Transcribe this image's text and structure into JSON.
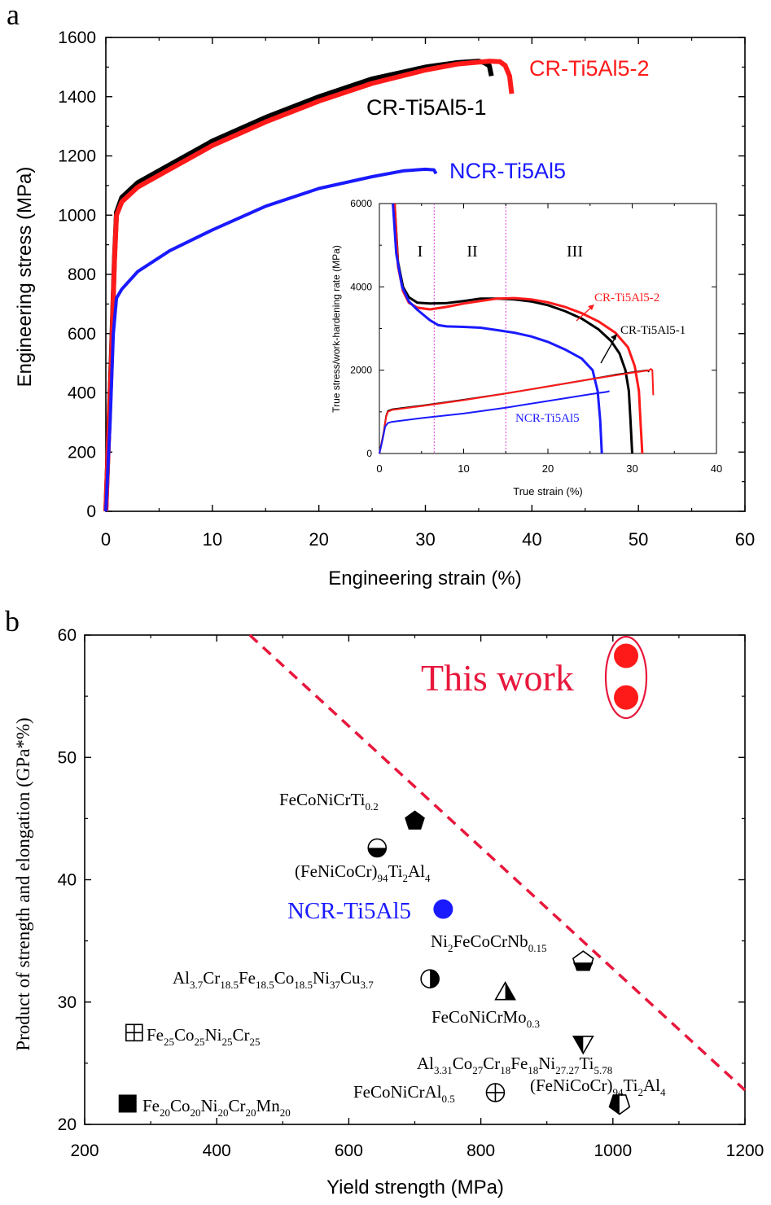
{
  "colors": {
    "black": "#000000",
    "red": "#ff1a1a",
    "blue": "#1a1aff",
    "crimson": "#e8173c",
    "magenta": "#e040e0"
  },
  "panels": {
    "a": {
      "letter": "a"
    },
    "b": {
      "letter": "b"
    }
  },
  "chart_data": [
    {
      "type": "line",
      "panel": "a",
      "xlabel": "Engineering strain (%)",
      "ylabel": "Engineering stress (MPa)",
      "xlim": [
        0,
        60
      ],
      "ylim": [
        0,
        1600
      ],
      "xticks": [
        0,
        10,
        20,
        30,
        40,
        50,
        60
      ],
      "yticks": [
        0,
        200,
        400,
        600,
        800,
        1000,
        1200,
        1400,
        1600
      ],
      "series": [
        {
          "name": "CR-Ti5Al5-1",
          "color": "#000000",
          "points": [
            [
              0,
              0
            ],
            [
              0.5,
              500
            ],
            [
              0.8,
              850
            ],
            [
              1.0,
              1010
            ],
            [
              1.5,
              1060
            ],
            [
              3,
              1110
            ],
            [
              6,
              1170
            ],
            [
              10,
              1250
            ],
            [
              15,
              1330
            ],
            [
              20,
              1400
            ],
            [
              25,
              1460
            ],
            [
              30,
              1500
            ],
            [
              33,
              1515
            ],
            [
              35,
              1520
            ],
            [
              35.5,
              1515
            ],
            [
              36,
              1505
            ],
            [
              36.2,
              1470
            ]
          ]
        },
        {
          "name": "CR-Ti5Al5-2",
          "color": "#ff1a1a",
          "points": [
            [
              0,
              0
            ],
            [
              0.5,
              480
            ],
            [
              0.8,
              840
            ],
            [
              1.0,
              1000
            ],
            [
              1.5,
              1045
            ],
            [
              3,
              1095
            ],
            [
              6,
              1155
            ],
            [
              10,
              1235
            ],
            [
              15,
              1315
            ],
            [
              20,
              1385
            ],
            [
              25,
              1445
            ],
            [
              30,
              1490
            ],
            [
              33,
              1510
            ],
            [
              36,
              1520
            ],
            [
              37,
              1518
            ],
            [
              37.5,
              1505
            ],
            [
              37.9,
              1470
            ],
            [
              38.1,
              1410
            ]
          ]
        },
        {
          "name": "NCR-Ti5Al5",
          "color": "#1a1aff",
          "points": [
            [
              0,
              0
            ],
            [
              0.4,
              300
            ],
            [
              0.7,
              600
            ],
            [
              1.0,
              720
            ],
            [
              1.5,
              750
            ],
            [
              3,
              810
            ],
            [
              6,
              880
            ],
            [
              10,
              950
            ],
            [
              15,
              1030
            ],
            [
              20,
              1090
            ],
            [
              25,
              1130
            ],
            [
              28,
              1150
            ],
            [
              30,
              1155
            ],
            [
              30.8,
              1153
            ],
            [
              31,
              1140
            ]
          ]
        }
      ]
    },
    {
      "type": "line",
      "panel": "a-inset",
      "xlabel": "True strain (%)",
      "ylabel": "True stress/work-hardening rate (MPa)",
      "xlim": [
        0,
        40
      ],
      "ylim": [
        0,
        6000
      ],
      "xticks": [
        0,
        10,
        20,
        30,
        40
      ],
      "yticks": [
        0,
        2000,
        4000,
        6000
      ],
      "regions": [
        {
          "label": "I",
          "from": 0,
          "to": 6.5
        },
        {
          "label": "II",
          "from": 6.5,
          "to": 15
        },
        {
          "label": "III",
          "from": 15,
          "to": 40
        }
      ],
      "dividers": [
        6.5,
        15
      ],
      "series": [
        {
          "name": "CR-Ti5Al5-1",
          "color": "#000000",
          "kind": "hardening",
          "points": [
            [
              1.8,
              6000
            ],
            [
              2.2,
              4600
            ],
            [
              2.8,
              4000
            ],
            [
              3.5,
              3750
            ],
            [
              4.5,
              3620
            ],
            [
              6,
              3600
            ],
            [
              8,
              3610
            ],
            [
              10,
              3660
            ],
            [
              12,
              3720
            ],
            [
              14,
              3720
            ],
            [
              16,
              3700
            ],
            [
              18,
              3650
            ],
            [
              20,
              3560
            ],
            [
              22,
              3420
            ],
            [
              24,
              3240
            ],
            [
              26,
              2980
            ],
            [
              27.5,
              2700
            ],
            [
              28.5,
              2400
            ],
            [
              29.2,
              2000
            ],
            [
              29.6,
              1500
            ],
            [
              29.8,
              800
            ],
            [
              30,
              0
            ]
          ]
        },
        {
          "name": "CR-Ti5Al5-2",
          "color": "#ff1a1a",
          "kind": "hardening",
          "points": [
            [
              1.8,
              6000
            ],
            [
              2.2,
              4500
            ],
            [
              2.8,
              3900
            ],
            [
              3.5,
              3620
            ],
            [
              4.5,
              3500
            ],
            [
              6,
              3460
            ],
            [
              8,
              3520
            ],
            [
              10,
              3600
            ],
            [
              12,
              3660
            ],
            [
              14,
              3720
            ],
            [
              16,
              3730
            ],
            [
              18,
              3700
            ],
            [
              20,
              3630
            ],
            [
              22,
              3520
            ],
            [
              24,
              3370
            ],
            [
              26,
              3170
            ],
            [
              28,
              2900
            ],
            [
              29.5,
              2550
            ],
            [
              30.3,
              2100
            ],
            [
              30.8,
              1500
            ],
            [
              31,
              700
            ],
            [
              31.2,
              0
            ]
          ]
        },
        {
          "name": "NCR-Ti5Al5",
          "color": "#1a1aff",
          "kind": "hardening",
          "points": [
            [
              1.6,
              6000
            ],
            [
              2,
              4800
            ],
            [
              2.7,
              4000
            ],
            [
              3.5,
              3650
            ],
            [
              4.5,
              3450
            ],
            [
              6,
              3200
            ],
            [
              7,
              3080
            ],
            [
              8,
              3050
            ],
            [
              10,
              3040
            ],
            [
              12,
              3020
            ],
            [
              14,
              2960
            ],
            [
              16,
              2900
            ],
            [
              18,
              2810
            ],
            [
              20,
              2680
            ],
            [
              22,
              2500
            ],
            [
              24,
              2280
            ],
            [
              25.3,
              2000
            ],
            [
              25.9,
              1500
            ],
            [
              26.2,
              800
            ],
            [
              26.4,
              0
            ]
          ]
        },
        {
          "name": "CR-Ti5Al5-1 stress",
          "color": "#000000",
          "kind": "stress",
          "points": [
            [
              0,
              0
            ],
            [
              0.5,
              500
            ],
            [
              0.8,
              900
            ],
            [
              1.0,
              1020
            ],
            [
              1.5,
              1060
            ],
            [
              5,
              1150
            ],
            [
              10,
              1290
            ],
            [
              15,
              1440
            ],
            [
              20,
              1610
            ],
            [
              25,
              1780
            ],
            [
              28,
              1890
            ],
            [
              30,
              1950
            ],
            [
              31.8,
              2000
            ],
            [
              32,
              1960
            ]
          ]
        },
        {
          "name": "CR-Ti5Al5-2 stress",
          "color": "#ff1a1a",
          "kind": "stress",
          "points": [
            [
              0,
              0
            ],
            [
              0.5,
              480
            ],
            [
              0.8,
              880
            ],
            [
              1.0,
              1000
            ],
            [
              1.5,
              1045
            ],
            [
              5,
              1140
            ],
            [
              10,
              1280
            ],
            [
              15,
              1440
            ],
            [
              20,
              1610
            ],
            [
              25,
              1780
            ],
            [
              30,
              1940
            ],
            [
              32,
              1995
            ],
            [
              32.2,
              2030
            ],
            [
              32.4,
              2000
            ],
            [
              32.5,
              1400
            ]
          ]
        },
        {
          "name": "NCR-Ti5Al5 stress",
          "color": "#1a1aff",
          "kind": "stress",
          "points": [
            [
              0,
              0
            ],
            [
              0.4,
              350
            ],
            [
              0.7,
              650
            ],
            [
              1.0,
              730
            ],
            [
              1.5,
              760
            ],
            [
              5,
              850
            ],
            [
              10,
              960
            ],
            [
              15,
              1100
            ],
            [
              20,
              1260
            ],
            [
              25,
              1420
            ],
            [
              27,
              1480
            ],
            [
              27.3,
              1500
            ]
          ]
        }
      ]
    },
    {
      "type": "scatter",
      "panel": "b",
      "xlabel": "Yield strength (MPa)",
      "ylabel": "Product of strength and elongation (GPa*%)",
      "xlim": [
        200,
        1200
      ],
      "ylim": [
        20,
        60
      ],
      "xticks": [
        200,
        400,
        600,
        800,
        1000,
        1200
      ],
      "yticks": [
        20,
        30,
        40,
        50,
        60
      ],
      "trendline": {
        "x": [
          450,
          1200
        ],
        "y": [
          60,
          22.8
        ],
        "color": "#e8173c",
        "style": "dashed"
      },
      "points": [
        {
          "name": "This work",
          "x": 1020,
          "y": 58.3,
          "marker": "filled-circle",
          "color": "#ff1a1a"
        },
        {
          "name": "This work",
          "x": 1020,
          "y": 54.9,
          "marker": "filled-circle",
          "color": "#ff1a1a"
        },
        {
          "name": "FeCoNiCrTi0.2",
          "x": 700,
          "y": 44.8,
          "marker": "filled-pentagon",
          "color": "#000000"
        },
        {
          "name": "(FeNiCoCr)94Ti2Al4",
          "x": 643,
          "y": 42.6,
          "marker": "half-circle-bottom",
          "color": "#000000"
        },
        {
          "name": "NCR-Ti5Al5",
          "x": 743,
          "y": 37.6,
          "marker": "filled-circle",
          "color": "#1a1aff"
        },
        {
          "name": "Ni2FeCoCrNb0.15",
          "x": 955,
          "y": 33.3,
          "marker": "half-pentagon",
          "color": "#000000"
        },
        {
          "name": "Al3.7Cr18.5Fe18.5Co18.5Ni37Cu3.7",
          "x": 723,
          "y": 31.9,
          "marker": "half-circle-right",
          "color": "#000000"
        },
        {
          "name": "FeCoNiCrMo0.3",
          "x": 837,
          "y": 30.8,
          "marker": "half-triangle-up",
          "color": "#000000"
        },
        {
          "name": "Fe25Co25Ni25Cr25",
          "x": 275,
          "y": 27.5,
          "marker": "square-cross",
          "color": "#000000"
        },
        {
          "name": "Al3.31Co27Cr18Fe18Ni27.27Ti5.78",
          "x": 955,
          "y": 26.6,
          "marker": "half-triangle-down",
          "color": "#000000"
        },
        {
          "name": "FeCoNiCrAl0.5",
          "x": 822,
          "y": 22.6,
          "marker": "circle-cross",
          "color": "#000000"
        },
        {
          "name": "(FeNiCoCr)94Ti2Al4",
          "x": 1010,
          "y": 21.7,
          "marker": "half-pentagon-left",
          "color": "#000000"
        },
        {
          "name": "Fe20Co20Ni20Cr20Mn20",
          "x": 265,
          "y": 21.7,
          "marker": "filled-square",
          "color": "#000000"
        }
      ]
    }
  ],
  "labels": {
    "a": {
      "cr1": "CR-Ti5Al5-1",
      "cr2": "CR-Ti5Al5-2",
      "ncr": "NCR-Ti5Al5"
    },
    "inset": {
      "cr1": "CR-Ti5Al5-1",
      "cr2": "CR-Ti5Al5-2",
      "ncr": "NCR-Ti5Al5"
    },
    "b": {
      "this_work": "This work",
      "ncr": "NCR-Ti5Al5",
      "p1": {
        "base": "FeCoNiCrTi",
        "sub": "0.2"
      },
      "p2": [
        [
          "(FeNiCoCr)",
          ""
        ],
        [
          "",
          "94"
        ],
        [
          "Ti",
          ""
        ],
        [
          "",
          "2"
        ],
        [
          "Al",
          ""
        ],
        [
          "",
          "4"
        ]
      ],
      "p3": [
        [
          "Ni",
          ""
        ],
        [
          "",
          "2"
        ],
        [
          "FeCoCrNb",
          ""
        ],
        [
          "",
          "0.15"
        ]
      ],
      "p4": [
        [
          "Al",
          ""
        ],
        [
          "",
          "3.7"
        ],
        [
          "Cr",
          ""
        ],
        [
          "",
          "18.5"
        ],
        [
          "Fe",
          ""
        ],
        [
          "",
          "18.5"
        ],
        [
          "Co",
          ""
        ],
        [
          "",
          "18.5"
        ],
        [
          "Ni",
          ""
        ],
        [
          "",
          "37"
        ],
        [
          "Cu",
          ""
        ],
        [
          "",
          "3.7"
        ]
      ],
      "p5": [
        [
          "FeCoNiCrMo",
          ""
        ],
        [
          "",
          "0.3"
        ]
      ],
      "p6": [
        [
          "Fe",
          ""
        ],
        [
          "",
          "25"
        ],
        [
          "Co",
          ""
        ],
        [
          "",
          "25"
        ],
        [
          "Ni",
          ""
        ],
        [
          "",
          "25"
        ],
        [
          "Cr",
          ""
        ],
        [
          "",
          "25"
        ]
      ],
      "p7": [
        [
          "Al",
          ""
        ],
        [
          "",
          "3.31"
        ],
        [
          "Co",
          ""
        ],
        [
          "",
          "27"
        ],
        [
          "Cr",
          ""
        ],
        [
          "",
          "18"
        ],
        [
          "Fe",
          ""
        ],
        [
          "",
          "18"
        ],
        [
          "Ni",
          ""
        ],
        [
          "",
          "27.27"
        ],
        [
          "Ti",
          ""
        ],
        [
          "",
          "5.78"
        ]
      ],
      "p8": [
        [
          "FeCoNiCrAl",
          ""
        ],
        [
          "",
          "0.5"
        ]
      ],
      "p9": [
        [
          "(FeNiCoCr)",
          ""
        ],
        [
          "",
          "94"
        ],
        [
          "Ti",
          ""
        ],
        [
          "",
          "2"
        ],
        [
          "Al",
          ""
        ],
        [
          "",
          "4"
        ]
      ],
      "p10": [
        [
          "Fe",
          ""
        ],
        [
          "",
          "20"
        ],
        [
          "Co",
          ""
        ],
        [
          "",
          "20"
        ],
        [
          "Ni",
          ""
        ],
        [
          "",
          "20"
        ],
        [
          "Cr",
          ""
        ],
        [
          "",
          "20"
        ],
        [
          "Mn",
          ""
        ],
        [
          "",
          "20"
        ]
      ]
    }
  }
}
